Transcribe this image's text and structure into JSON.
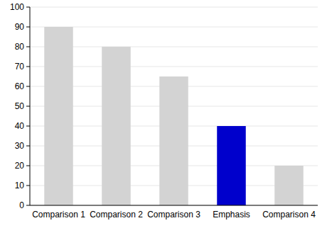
{
  "chart_data": {
    "type": "bar",
    "categories": [
      "Comparison 1",
      "Comparison 2",
      "Comparison 3",
      "Emphasis",
      "Comparison 4"
    ],
    "values": [
      90,
      80,
      65,
      40,
      20
    ],
    "colors": [
      "#d3d3d3",
      "#d3d3d3",
      "#d3d3d3",
      "#0000cc",
      "#d3d3d3"
    ],
    "ylim": [
      0,
      100
    ],
    "yticks": [
      0,
      10,
      20,
      30,
      40,
      50,
      60,
      70,
      80,
      90,
      100
    ],
    "grid": true
  }
}
